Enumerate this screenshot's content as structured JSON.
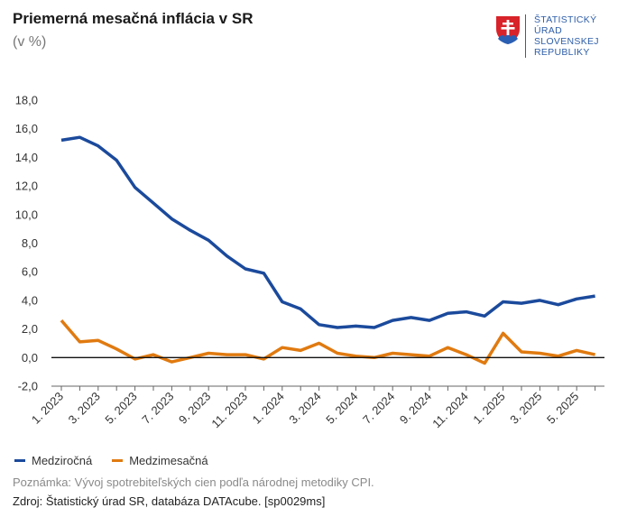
{
  "header": {
    "title": "Priemerná mesačná inflácia v SR",
    "subtitle": "(v %)"
  },
  "logo": {
    "lines": [
      "ŠTATISTICKÝ",
      "ÚRAD",
      "SLOVENSKEJ",
      "REPUBLIKY"
    ],
    "color": "#2e5ea8",
    "icon": "slovak-coat-of-arms-icon"
  },
  "legend": [
    {
      "label": "Medziročná",
      "color": "#1b4a9c"
    },
    {
      "label": "Medzimesačná",
      "color": "#e07a10"
    }
  ],
  "footer": {
    "note": "Poznámka: Vývoj spotrebiteľských cien podľa národnej metodiky CPI.",
    "source": "Zdroj: Štatistický úrad SR, databáza DATAcube. [sp0029ms]"
  },
  "chart_data": {
    "type": "line",
    "title": "Priemerná mesačná inflácia v SR",
    "subtitle": "(v %)",
    "xlabel": "",
    "ylabel": "",
    "ylim": [
      -2,
      18
    ],
    "yticks": [
      "-2,0",
      "0,0",
      "2,0",
      "4,0",
      "6,0",
      "8,0",
      "10,0",
      "12,0",
      "14,0",
      "16,0",
      "18,0"
    ],
    "grid": false,
    "zero_line": true,
    "legend_position": "bottom-left",
    "x": [
      "1. 2023",
      "2. 2023",
      "3. 2023",
      "4. 2023",
      "5. 2023",
      "6. 2023",
      "7. 2023",
      "8. 2023",
      "9. 2023",
      "10. 2023",
      "11. 2023",
      "12. 2023",
      "1. 2024",
      "2. 2024",
      "3. 2024",
      "4. 2024",
      "5. 2024",
      "6. 2024",
      "7. 2024",
      "8. 2024",
      "9. 2024",
      "10. 2024",
      "11. 2024",
      "12. 2024",
      "1. 2025",
      "2. 2025",
      "3. 2025",
      "4. 2025",
      "5. 2025",
      "6. 2025"
    ],
    "xtick_labels": [
      "1. 2023",
      "3. 2023",
      "5. 2023",
      "7. 2023",
      "9. 2023",
      "11. 2023",
      "1. 2024",
      "3. 2024",
      "5. 2024",
      "7. 2024",
      "9. 2024",
      "11. 2024",
      "1. 2025",
      "3. 2025",
      "5. 2025"
    ],
    "series": [
      {
        "name": "Medziročná",
        "color": "#1b4a9c",
        "values": [
          15.2,
          15.4,
          14.8,
          13.8,
          11.9,
          10.8,
          9.7,
          8.9,
          8.2,
          7.1,
          6.2,
          5.9,
          3.9,
          3.4,
          2.3,
          2.1,
          2.2,
          2.1,
          2.6,
          2.8,
          2.6,
          3.1,
          3.2,
          2.9,
          3.9,
          3.8,
          4.0,
          3.7,
          4.1,
          4.3
        ]
      },
      {
        "name": "Medzimesačná",
        "color": "#e07a10",
        "values": [
          2.6,
          1.1,
          1.2,
          0.6,
          -0.1,
          0.2,
          -0.3,
          0.0,
          0.3,
          0.2,
          0.2,
          -0.1,
          0.7,
          0.5,
          1.0,
          0.3,
          0.1,
          0.0,
          0.3,
          0.2,
          0.1,
          0.7,
          0.2,
          -0.4,
          1.7,
          0.4,
          0.3,
          0.1,
          0.5,
          0.2
        ]
      }
    ]
  }
}
